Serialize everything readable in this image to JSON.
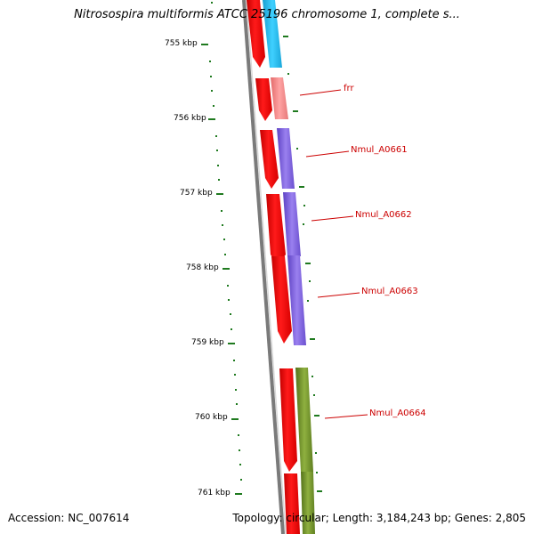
{
  "header": {
    "title": "Nitrosospira multiformis ATCC 25196 chromosome 1, complete s..."
  },
  "footer": {
    "accession": "Accession: NC_007614",
    "summary": "Topology: circular; Length: 3,184,243 bp; Genes: 2,805"
  },
  "ruler": {
    "ticks": [
      "755 kbp",
      "756 kbp",
      "757 kbp",
      "758 kbp",
      "759 kbp",
      "760 kbp",
      "761 kbp"
    ]
  },
  "genes": [
    {
      "label": "frr",
      "label_color": "#cc0000"
    },
    {
      "label": "Nmul_A0661",
      "label_color": "#cc0000"
    },
    {
      "label": "Nmul_A0662",
      "label_color": "#cc0000"
    },
    {
      "label": "Nmul_A0663",
      "label_color": "#cc0000"
    },
    {
      "label": "Nmul_A0664",
      "label_color": "#cc0000"
    }
  ],
  "colors": {
    "cds_strand": "#ee0000",
    "backbone": "#808080",
    "tick": "#1f7a1f",
    "gene_cyan": "#22b5e8",
    "gene_pink": "#f08080",
    "gene_purple": "#7a5cd6",
    "gene_olive": "#6b8e23"
  }
}
